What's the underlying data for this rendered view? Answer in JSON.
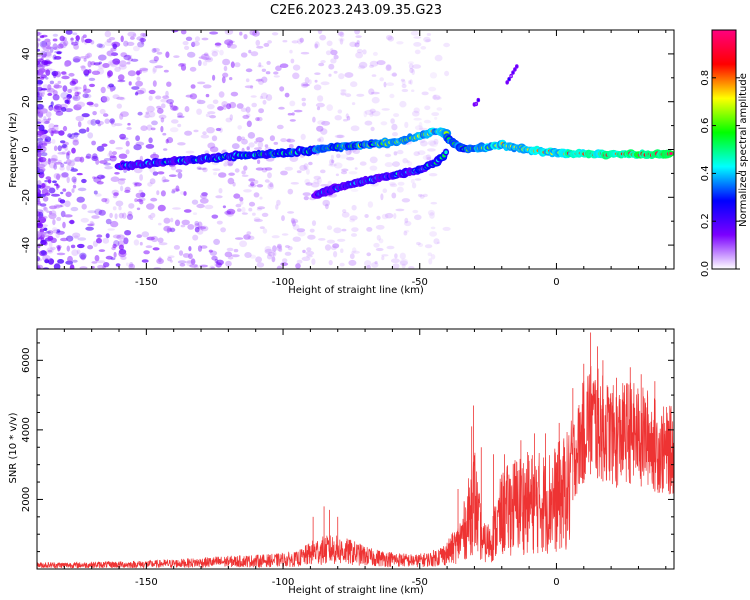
{
  "title": "C2E6.2023.243.09.35.G23",
  "chart_data": [
    {
      "type": "heatmap",
      "xlabel": "Height of straight line (km)",
      "ylabel": "Frequency (Hz)",
      "xlim": [
        -190,
        43
      ],
      "ylim": [
        -50,
        50
      ],
      "x_ticks": [
        "-150",
        "-100",
        "-50",
        "0"
      ],
      "x_tick_values": [
        -150,
        -100,
        -50,
        0
      ],
      "y_ticks": [
        "-40",
        "-20",
        "0",
        "20",
        "40"
      ],
      "y_tick_values": [
        -40,
        -20,
        0,
        20,
        40
      ],
      "colorbar": {
        "label": "Normalized spectral amplitude",
        "range": [
          0,
          1
        ],
        "ticks": [
          "0.0",
          "0.2",
          "0.4",
          "0.6",
          "0.8"
        ],
        "tick_values": [
          0,
          0.2,
          0.4,
          0.6,
          0.8
        ],
        "colors": [
          "#ffffff",
          "#7b00ff",
          "#0000ff",
          "#00ffff",
          "#00ff00",
          "#ffff00",
          "#ff0000",
          "#ff007f"
        ]
      },
      "traces": [
        {
          "points": [
            [
              -160,
              -7
            ],
            [
              -140,
              -5
            ],
            [
              -120,
              -3
            ],
            [
              -100,
              -1.5
            ],
            [
              -80,
              1
            ],
            [
              -60,
              3
            ],
            [
              -50,
              5.5
            ],
            [
              -45,
              7.5
            ],
            [
              -40,
              7
            ]
          ]
        },
        {
          "points": [
            [
              -88,
              -19
            ],
            [
              -80,
              -16
            ],
            [
              -70,
              -13
            ],
            [
              -60,
              -11
            ],
            [
              -50,
              -8.5
            ],
            [
              -44,
              -5.5
            ],
            [
              -40,
              -1
            ]
          ]
        },
        {
          "points": [
            [
              -40,
              5
            ],
            [
              -36,
              1
            ],
            [
              -32,
              0
            ],
            [
              -25,
              1
            ],
            [
              -20,
              2
            ],
            [
              -10,
              0
            ],
            [
              0,
              -1.5
            ],
            [
              20,
              -2
            ],
            [
              42,
              -2
            ]
          ]
        },
        {
          "points": [
            [
              -30,
              19
            ],
            [
              -28,
              21
            ]
          ]
        },
        {
          "points": [
            [
              -18,
              28
            ],
            [
              -14,
              36
            ]
          ]
        }
      ]
    },
    {
      "type": "line",
      "xlabel": "Height of straight line (km)",
      "ylabel": "SNR (10 * v/v)",
      "xlim": [
        -190,
        43
      ],
      "ylim": [
        0,
        6900
      ],
      "x_ticks": [
        "-150",
        "-100",
        "-50",
        "0"
      ],
      "x_tick_values": [
        -150,
        -100,
        -50,
        0
      ],
      "y_ticks": [
        "2000",
        "4000",
        "6000"
      ],
      "y_tick_values": [
        2000,
        4000,
        6000
      ],
      "color": "#ee3333",
      "envelope": [
        [
          -190,
          200
        ],
        [
          -175,
          200
        ],
        [
          -165,
          220
        ],
        [
          -155,
          230
        ],
        [
          -140,
          280
        ],
        [
          -130,
          330
        ],
        [
          -120,
          380
        ],
        [
          -105,
          430
        ],
        [
          -95,
          500
        ],
        [
          -88,
          900
        ],
        [
          -82,
          1000
        ],
        [
          -75,
          850
        ],
        [
          -68,
          600
        ],
        [
          -60,
          500
        ],
        [
          -52,
          420
        ],
        [
          -46,
          500
        ],
        [
          -40,
          800
        ],
        [
          -36,
          1300
        ],
        [
          -33,
          2200
        ],
        [
          -31,
          3200
        ],
        [
          -30,
          3700
        ],
        [
          -29,
          2800
        ],
        [
          -27,
          1300
        ],
        [
          -24,
          1400
        ],
        [
          -20,
          2800
        ],
        [
          -15,
          3300
        ],
        [
          -10,
          3400
        ],
        [
          -5,
          3400
        ],
        [
          0,
          3600
        ],
        [
          4,
          4000
        ],
        [
          8,
          4800
        ],
        [
          10,
          5500
        ],
        [
          12,
          6100
        ],
        [
          14,
          5900
        ],
        [
          18,
          5500
        ],
        [
          22,
          5200
        ],
        [
          26,
          5500
        ],
        [
          30,
          5300
        ],
        [
          34,
          5200
        ],
        [
          38,
          4700
        ],
        [
          43,
          4700
        ]
      ],
      "peaks": [
        [
          -89,
          1500
        ],
        [
          -85,
          1800
        ],
        [
          -83,
          1700
        ],
        [
          -80,
          1500
        ],
        [
          -36,
          2300
        ],
        [
          -31,
          4100
        ],
        [
          -30.3,
          4700
        ],
        [
          -27.5,
          3500
        ],
        [
          -23,
          3300
        ],
        [
          -19,
          3300
        ],
        [
          -13,
          3700
        ],
        [
          -8,
          3900
        ],
        [
          -4,
          3900
        ],
        [
          1,
          4200
        ],
        [
          6,
          5200
        ],
        [
          10,
          5900
        ],
        [
          12.5,
          6800
        ],
        [
          15,
          6400
        ],
        [
          17,
          6000
        ],
        [
          22,
          5500
        ],
        [
          27,
          5800
        ],
        [
          31,
          5600
        ],
        [
          36,
          5400
        ]
      ]
    }
  ]
}
